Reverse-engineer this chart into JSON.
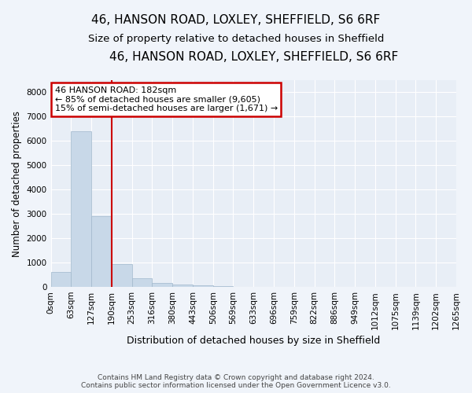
{
  "title": "46, HANSON ROAD, LOXLEY, SHEFFIELD, S6 6RF",
  "subtitle": "Size of property relative to detached houses in Sheffield",
  "xlabel": "Distribution of detached houses by size in Sheffield",
  "ylabel": "Number of detached properties",
  "bar_values": [
    600,
    6400,
    2900,
    950,
    360,
    155,
    100,
    60,
    30,
    10,
    5,
    3,
    2,
    1,
    1,
    0,
    0,
    0,
    0,
    0
  ],
  "bar_color": "#c8d8e8",
  "bar_edgecolor": "#a0b8cc",
  "x_labels": [
    "0sqm",
    "63sqm",
    "127sqm",
    "190sqm",
    "253sqm",
    "316sqm",
    "380sqm",
    "443sqm",
    "506sqm",
    "569sqm",
    "633sqm",
    "696sqm",
    "759sqm",
    "822sqm",
    "886sqm",
    "949sqm",
    "1012sqm",
    "1075sqm",
    "1139sqm",
    "1202sqm",
    "1265sqm"
  ],
  "ylim": [
    0,
    8500
  ],
  "yticks": [
    0,
    1000,
    2000,
    3000,
    4000,
    5000,
    6000,
    7000,
    8000
  ],
  "annotation_text": "46 HANSON ROAD: 182sqm\n← 85% of detached houses are smaller (9,605)\n15% of semi-detached houses are larger (1,671) →",
  "annotation_box_color": "#cc0000",
  "footer_line1": "Contains HM Land Registry data © Crown copyright and database right 2024.",
  "footer_line2": "Contains public sector information licensed under the Open Government Licence v3.0.",
  "fig_background_color": "#f0f4fa",
  "axes_background_color": "#e8eef6",
  "grid_color": "#ffffff",
  "title_fontsize": 11,
  "subtitle_fontsize": 9.5,
  "xlabel_fontsize": 9,
  "ylabel_fontsize": 8.5,
  "tick_fontsize": 7.5,
  "annotation_fontsize": 8,
  "footer_fontsize": 6.5
}
